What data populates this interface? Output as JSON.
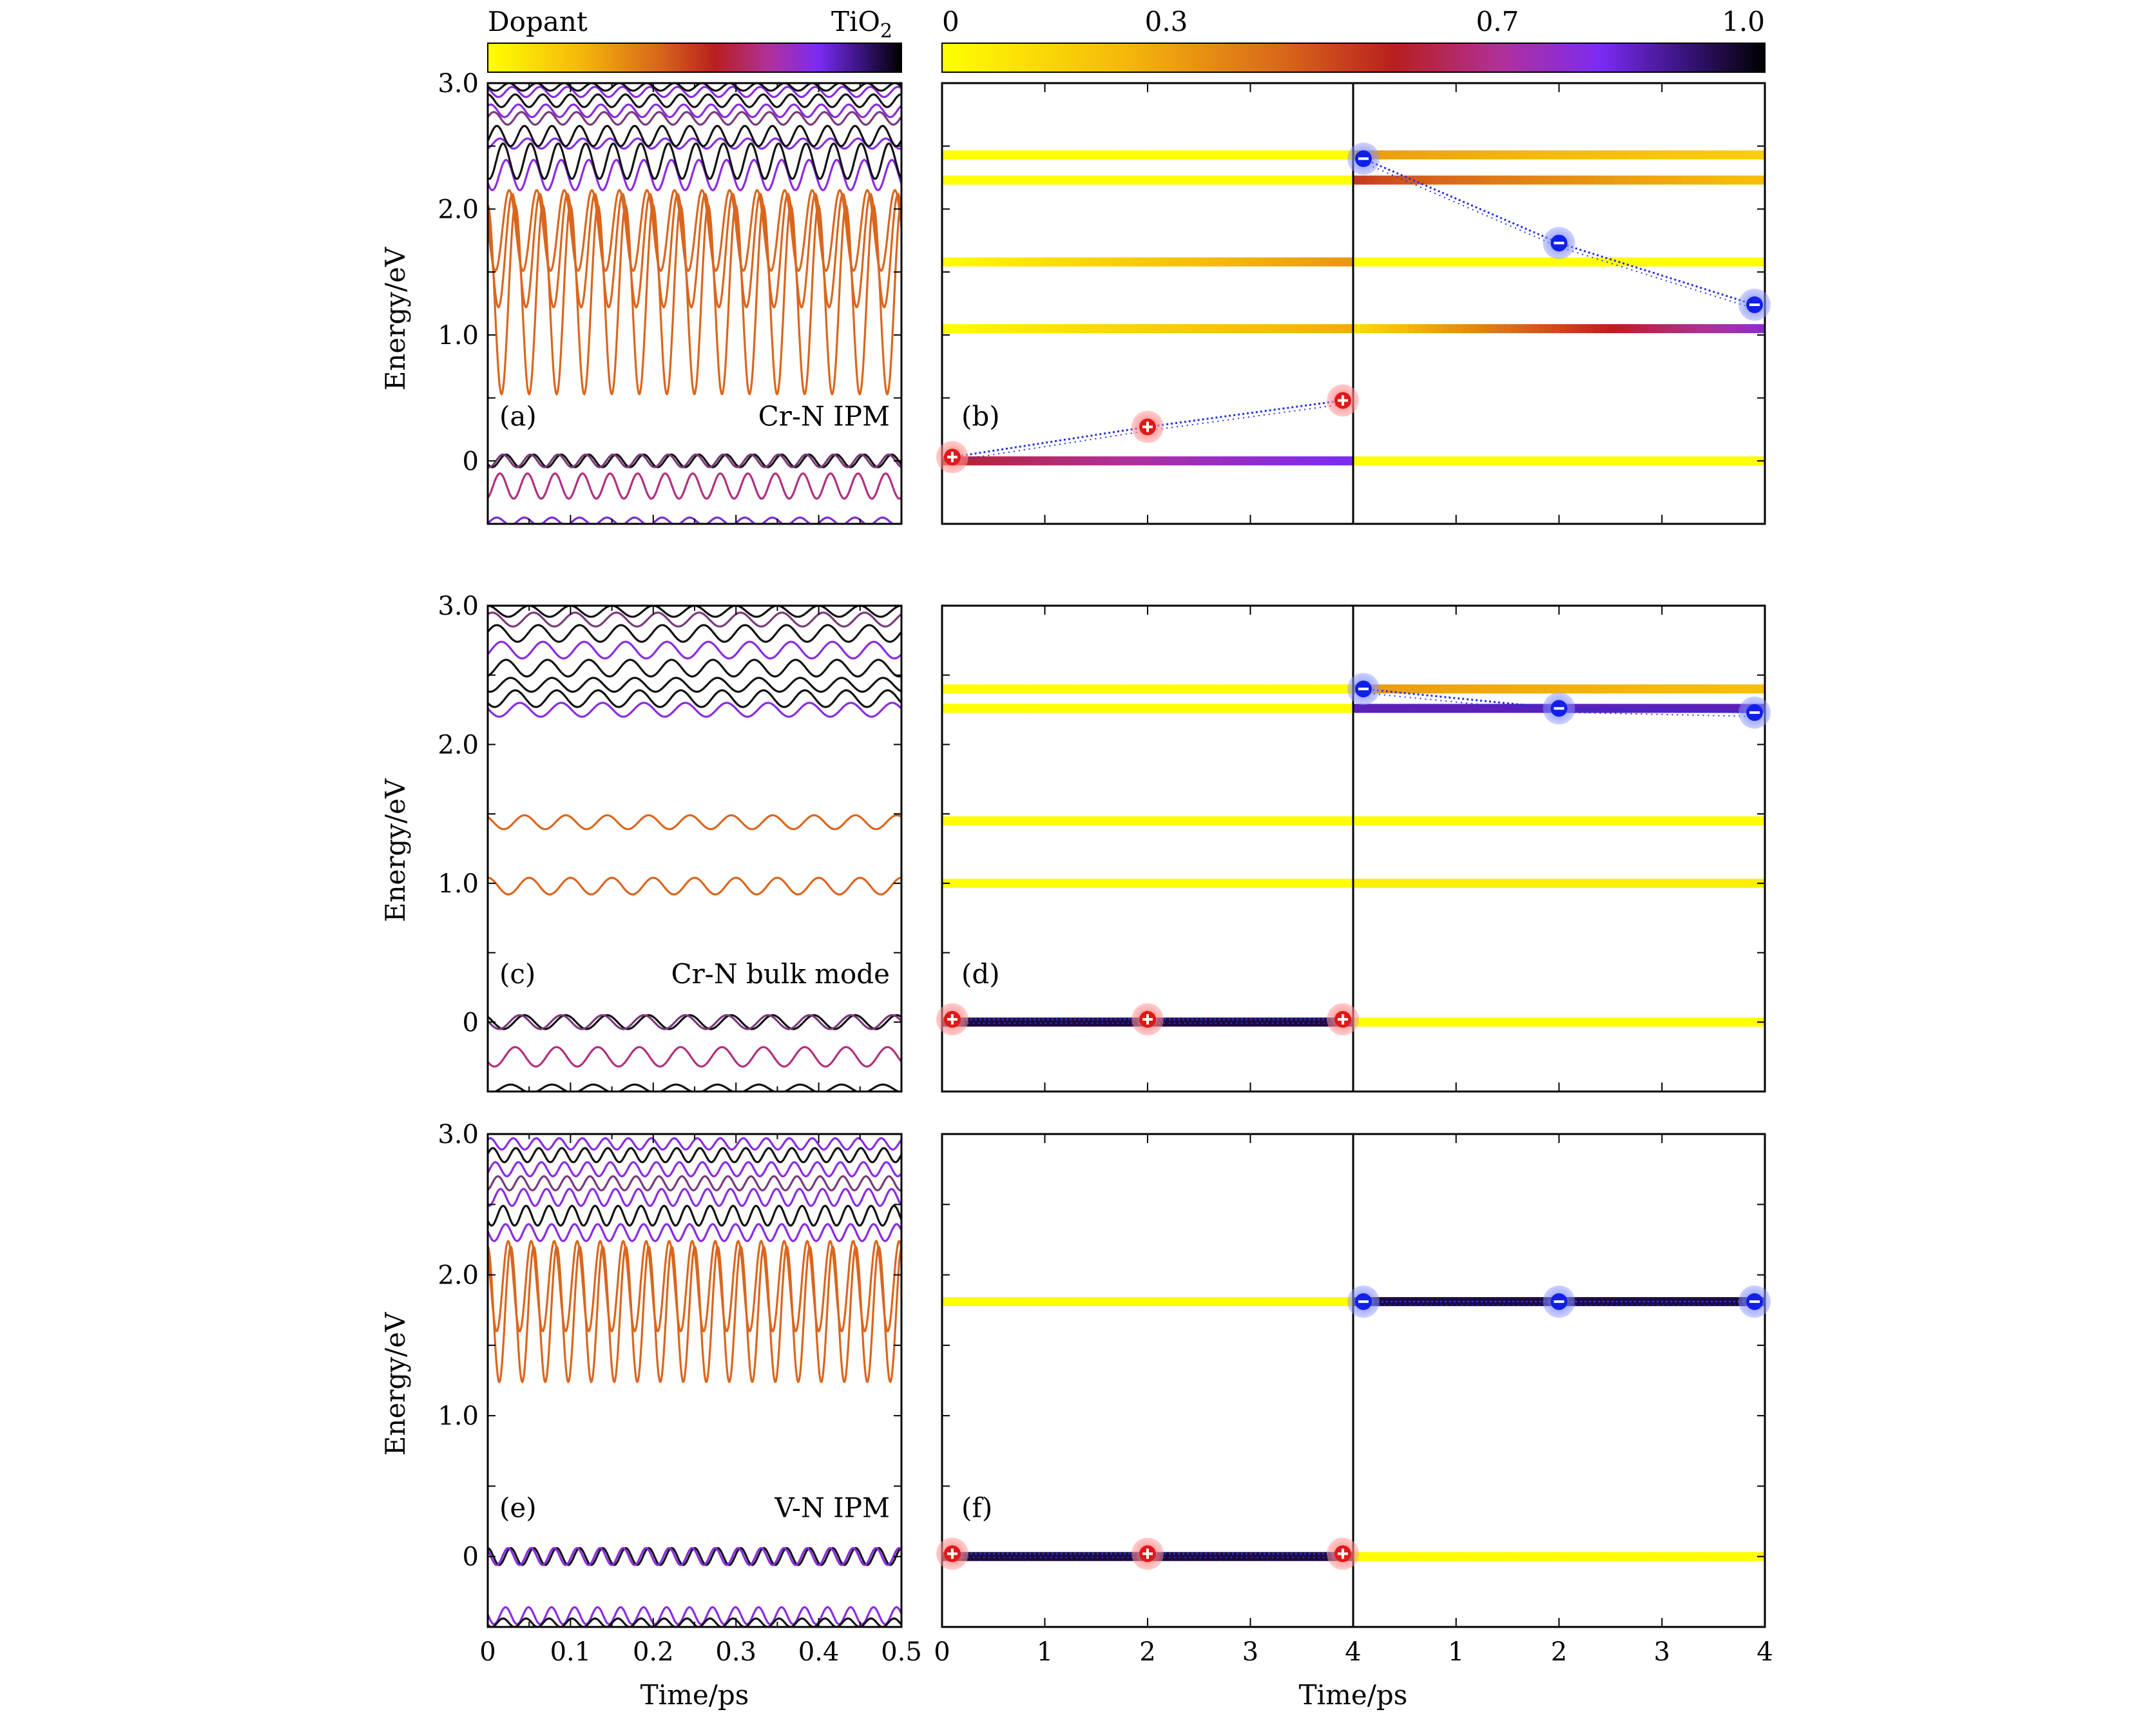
{
  "colorbar": {
    "left_label": "Dopant",
    "right_label_base": "TiO",
    "right_label_sub": "2",
    "ticks": [
      "0",
      "0.3",
      "0.7",
      "1.0"
    ],
    "tick_values": [
      0,
      0.3,
      0.7,
      1.0
    ],
    "colormap": "gnuplot2-like: yellow (0) -> orange -> red (0.5) -> violet (0.75) -> black (1.0)"
  },
  "axes": {
    "ylabel": "Energy/eV",
    "xlabel_left": "Time/ps",
    "xlabel_right": "Time/ps",
    "yticks": [
      "0",
      "1.0",
      "2.0",
      "3.0"
    ],
    "ylim": [
      -0.5,
      3.0
    ],
    "left_xticks": [
      "0",
      "0.1",
      "0.2",
      "0.3",
      "0.4",
      "0.5"
    ],
    "left_xlim": [
      0,
      0.5
    ],
    "right_xticks": [
      "0",
      "1",
      "2",
      "3",
      "4",
      "1",
      "2",
      "3",
      "4"
    ]
  },
  "chart_data": [
    {
      "type": "line",
      "panel": "(a)",
      "annotation": "Cr-N IPM",
      "x_range": [
        0,
        0.5
      ],
      "series": [
        {
          "center": 1.28,
          "amplitude": 0.75,
          "period_ps": 0.0333,
          "color": "#d9661e"
        },
        {
          "center": 1.67,
          "amplitude": 0.45,
          "period_ps": 0.0333,
          "color": "#d9661e"
        },
        {
          "center": 1.83,
          "amplitude": 0.32,
          "period_ps": 0.0333,
          "color": "#d9661e"
        },
        {
          "center": 2.27,
          "amplitude": 0.12,
          "period_ps": 0.0333,
          "color": "#8a2be2"
        },
        {
          "center": 2.38,
          "amplitude": 0.14,
          "period_ps": 0.0333,
          "color": "#111111"
        },
        {
          "center": 2.52,
          "amplitude": 0.04,
          "period_ps": 0.0333,
          "color": "#8a2be2"
        },
        {
          "center": 2.58,
          "amplitude": 0.08,
          "period_ps": 0.0333,
          "color": "#111111"
        },
        {
          "center": 2.72,
          "amplitude": 0.05,
          "period_ps": 0.0333,
          "color": "#7a3a7a"
        },
        {
          "center": 2.78,
          "amplitude": 0.05,
          "period_ps": 0.0333,
          "color": "#8a2be2"
        },
        {
          "center": 2.86,
          "amplitude": 0.05,
          "period_ps": 0.0333,
          "color": "#111111"
        },
        {
          "center": 2.93,
          "amplitude": 0.04,
          "period_ps": 0.0333,
          "color": "#8a2be2"
        },
        {
          "center": 2.97,
          "amplitude": 0.03,
          "period_ps": 0.0333,
          "color": "#111111"
        },
        {
          "center": 0.0,
          "amplitude": 0.05,
          "period_ps": 0.0333,
          "color": "#111111"
        },
        {
          "center": 0.0,
          "amplitude": 0.05,
          "period_ps": 0.0333,
          "color": "#7a3a7a"
        },
        {
          "center": -0.2,
          "amplitude": 0.1,
          "period_ps": 0.0333,
          "color": "#b03080"
        },
        {
          "center": -0.48,
          "amplitude": 0.03,
          "period_ps": 0.0333,
          "color": "#7a2bd2"
        }
      ]
    },
    {
      "type": "line",
      "panel": "(b)",
      "x_range_hole": [
        0,
        4
      ],
      "x_range_electron": [
        0,
        4
      ],
      "levels": [
        {
          "side": "hole",
          "energy": 2.43,
          "ratio": 0.0
        },
        {
          "side": "hole",
          "energy": 2.23,
          "ratio": 0.0
        },
        {
          "side": "hole",
          "energy": 1.58,
          "ratio": [
            0.0,
            0.3
          ]
        },
        {
          "side": "hole",
          "energy": 1.05,
          "ratio": [
            0.0,
            0.25
          ]
        },
        {
          "side": "hole",
          "energy": 0.0,
          "ratio": [
            0.55,
            0.8
          ]
        },
        {
          "side": "electron",
          "energy": 2.43,
          "ratio": [
            0.3,
            0.15
          ]
        },
        {
          "side": "electron",
          "energy": 2.23,
          "ratio": [
            0.5,
            0.2
          ]
        },
        {
          "side": "electron",
          "energy": 1.58,
          "ratio": 0.0
        },
        {
          "side": "electron",
          "energy": 1.05,
          "ratio": [
            0.1,
            0.75
          ]
        },
        {
          "side": "electron",
          "energy": 0.0,
          "ratio": 0.0
        }
      ],
      "hole_markers": [
        {
          "t": 0.1,
          "E": 0.03
        },
        {
          "t": 2.0,
          "E": 0.27
        },
        {
          "t": 3.9,
          "E": 0.48
        }
      ],
      "electron_markers": [
        {
          "t": 0.1,
          "E": 2.4
        },
        {
          "t": 2.0,
          "E": 1.73
        },
        {
          "t": 3.9,
          "E": 1.24
        }
      ]
    },
    {
      "type": "line",
      "panel": "(c)",
      "annotation": "Cr-N bulk mode",
      "x_range": [
        0,
        0.5
      ],
      "series": [
        {
          "center": 0.98,
          "amplitude": 0.06,
          "period_ps": 0.05,
          "color": "#d9661e"
        },
        {
          "center": 1.44,
          "amplitude": 0.05,
          "period_ps": 0.05,
          "color": "#d9661e"
        },
        {
          "center": 2.25,
          "amplitude": 0.05,
          "period_ps": 0.05,
          "color": "#8a2be2"
        },
        {
          "center": 2.33,
          "amplitude": 0.06,
          "period_ps": 0.05,
          "color": "#111111"
        },
        {
          "center": 2.43,
          "amplitude": 0.05,
          "period_ps": 0.05,
          "color": "#111111"
        },
        {
          "center": 2.55,
          "amplitude": 0.06,
          "period_ps": 0.05,
          "color": "#111111"
        },
        {
          "center": 2.68,
          "amplitude": 0.06,
          "period_ps": 0.05,
          "color": "#8a2be2"
        },
        {
          "center": 2.8,
          "amplitude": 0.06,
          "period_ps": 0.05,
          "color": "#111111"
        },
        {
          "center": 2.9,
          "amplitude": 0.05,
          "period_ps": 0.05,
          "color": "#7a3a7a"
        },
        {
          "center": 2.96,
          "amplitude": 0.04,
          "period_ps": 0.05,
          "color": "#111111"
        },
        {
          "center": 0.0,
          "amplitude": 0.05,
          "period_ps": 0.05,
          "color": "#111111"
        },
        {
          "center": 0.0,
          "amplitude": 0.05,
          "period_ps": 0.05,
          "color": "#7a3a7a"
        },
        {
          "center": -0.25,
          "amplitude": 0.07,
          "period_ps": 0.05,
          "color": "#b03080"
        },
        {
          "center": -0.48,
          "amplitude": 0.03,
          "period_ps": 0.05,
          "color": "#111111"
        }
      ]
    },
    {
      "type": "line",
      "panel": "(d)",
      "levels": [
        {
          "side": "hole",
          "energy": 2.4,
          "ratio": 0.0
        },
        {
          "side": "hole",
          "energy": 2.26,
          "ratio": 0.0
        },
        {
          "side": "hole",
          "energy": 1.45,
          "ratio": 0.0
        },
        {
          "side": "hole",
          "energy": 1.0,
          "ratio": 0.0
        },
        {
          "side": "hole",
          "energy": 0.0,
          "ratio": 0.95
        },
        {
          "side": "electron",
          "energy": 2.4,
          "ratio": [
            0.3,
            0.2
          ]
        },
        {
          "side": "electron",
          "energy": 2.26,
          "ratio": 0.85
        },
        {
          "side": "electron",
          "energy": 1.45,
          "ratio": 0.0
        },
        {
          "side": "electron",
          "energy": 1.0,
          "ratio": 0.05
        },
        {
          "side": "electron",
          "energy": 0.0,
          "ratio": 0.0
        }
      ],
      "hole_markers": [
        {
          "t": 0.1,
          "E": 0.02
        },
        {
          "t": 2.0,
          "E": 0.02
        },
        {
          "t": 3.9,
          "E": 0.02
        }
      ],
      "electron_markers": [
        {
          "t": 0.1,
          "E": 2.4
        },
        {
          "t": 2.0,
          "E": 2.26
        },
        {
          "t": 3.9,
          "E": 2.23
        }
      ]
    },
    {
      "type": "line",
      "panel": "(e)",
      "annotation": "V-N IPM",
      "x_range": [
        0,
        0.5
      ],
      "series": [
        {
          "center": 1.72,
          "amplitude": 0.48,
          "period_ps": 0.0278,
          "color": "#d9661e"
        },
        {
          "center": 1.92,
          "amplitude": 0.32,
          "period_ps": 0.0278,
          "color": "#d9661e"
        },
        {
          "center": 2.3,
          "amplitude": 0.06,
          "period_ps": 0.0278,
          "color": "#8a2be2"
        },
        {
          "center": 2.42,
          "amplitude": 0.07,
          "period_ps": 0.0278,
          "color": "#111111"
        },
        {
          "center": 2.55,
          "amplitude": 0.06,
          "period_ps": 0.0278,
          "color": "#8a2be2"
        },
        {
          "center": 2.65,
          "amplitude": 0.05,
          "period_ps": 0.0278,
          "color": "#7a3a7a"
        },
        {
          "center": 2.75,
          "amplitude": 0.05,
          "period_ps": 0.0278,
          "color": "#8a2be2"
        },
        {
          "center": 2.85,
          "amplitude": 0.05,
          "period_ps": 0.0278,
          "color": "#111111"
        },
        {
          "center": 2.93,
          "amplitude": 0.04,
          "period_ps": 0.0278,
          "color": "#8a2be2"
        },
        {
          "center": 0.0,
          "amplitude": 0.06,
          "period_ps": 0.0278,
          "color": "#111111"
        },
        {
          "center": 0.0,
          "amplitude": 0.06,
          "period_ps": 0.0278,
          "color": "#8a2be2"
        },
        {
          "center": -0.42,
          "amplitude": 0.06,
          "period_ps": 0.0278,
          "color": "#8a2be2"
        },
        {
          "center": -0.47,
          "amplitude": 0.03,
          "period_ps": 0.0278,
          "color": "#111111"
        }
      ]
    },
    {
      "type": "line",
      "panel": "(f)",
      "levels": [
        {
          "side": "hole",
          "energy": 1.81,
          "ratio": 0.0
        },
        {
          "side": "hole",
          "energy": 0.0,
          "ratio": 0.95
        },
        {
          "side": "electron",
          "energy": 1.81,
          "ratio": 0.95
        },
        {
          "side": "electron",
          "energy": 0.0,
          "ratio": 0.0
        }
      ],
      "hole_markers": [
        {
          "t": 0.1,
          "E": 0.02
        },
        {
          "t": 2.0,
          "E": 0.02
        },
        {
          "t": 3.9,
          "E": 0.02
        }
      ],
      "electron_markers": [
        {
          "t": 0.1,
          "E": 1.81
        },
        {
          "t": 2.0,
          "E": 1.81
        },
        {
          "t": 3.9,
          "E": 1.81
        }
      ]
    }
  ]
}
